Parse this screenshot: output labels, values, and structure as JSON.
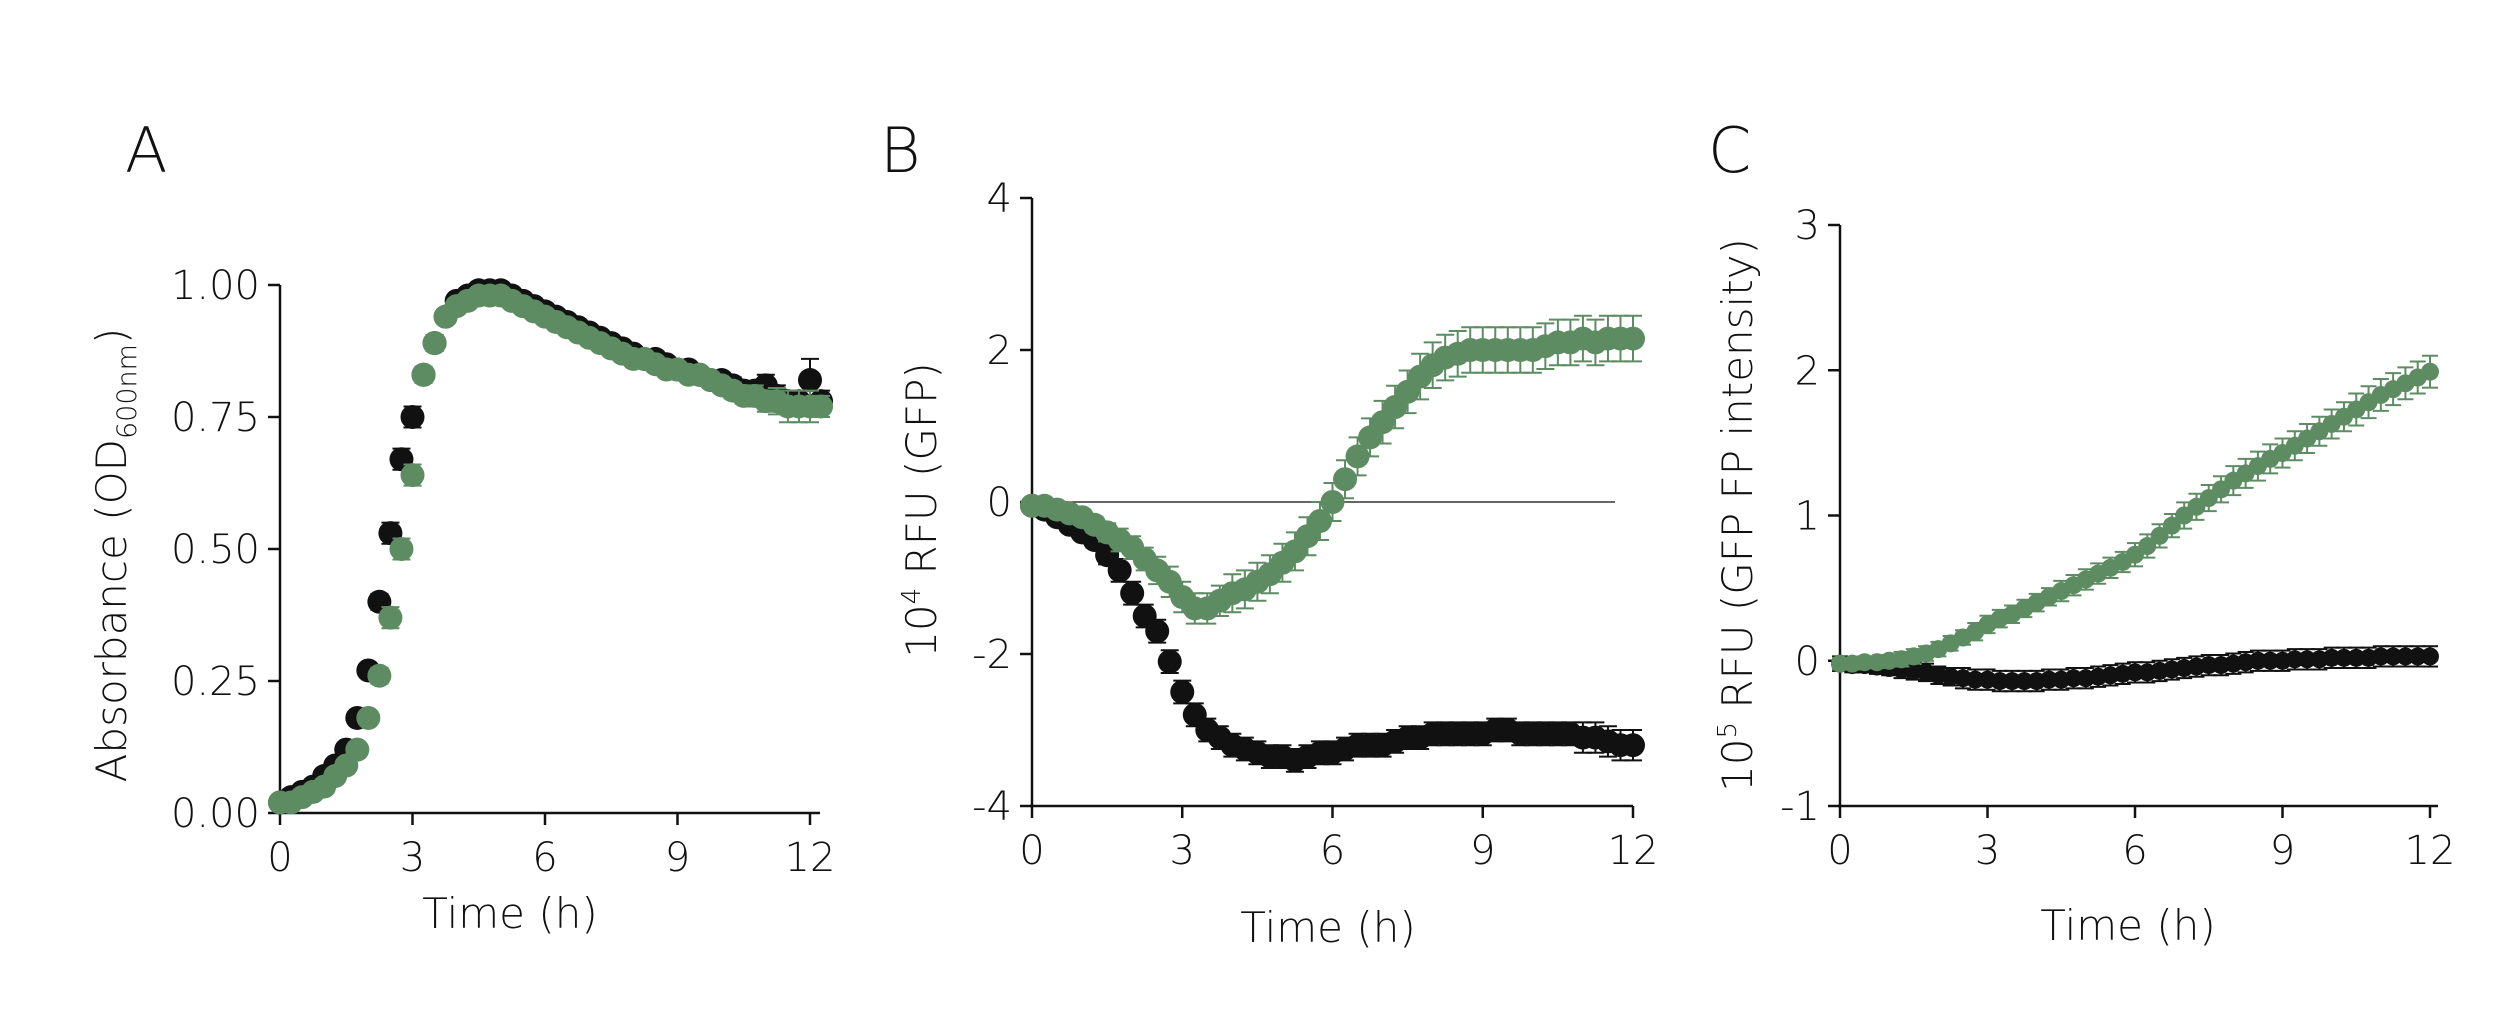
{
  "chart_data": [
    {
      "panel": "A",
      "type": "scatter",
      "xlabel": "Time (h)",
      "ylabel": "Absorbance (OD",
      "ylabel_sub": "600nm",
      "ylabel_end": ")",
      "xlim": [
        0,
        12
      ],
      "ylim": [
        0,
        1
      ],
      "xticks": [
        0,
        3,
        6,
        9,
        12
      ],
      "yticks": [
        0,
        0.25,
        0.5,
        0.75,
        1
      ],
      "ytick_labels": [
        "0.00",
        "0.25",
        "0.50",
        "0.75",
        "1.00"
      ],
      "series": [
        {
          "color": "#111111",
          "x": [
            0,
            0.25,
            0.5,
            0.75,
            1,
            1.25,
            1.5,
            1.75,
            2,
            2.25,
            2.5,
            2.75,
            3,
            3.25,
            3.5,
            3.75,
            4,
            4.25,
            4.5,
            4.75,
            5,
            5.25,
            5.5,
            5.75,
            6,
            6.25,
            6.5,
            6.75,
            7,
            7.25,
            7.5,
            7.75,
            8,
            8.25,
            8.5,
            8.75,
            9,
            9.25,
            9.5,
            9.75,
            10,
            10.25,
            10.5,
            10.75,
            11,
            11.25,
            11.5,
            11.75,
            12,
            12.25
          ],
          "y": [
            0.02,
            0.03,
            0.04,
            0.05,
            0.07,
            0.09,
            0.12,
            0.18,
            0.27,
            0.4,
            0.53,
            0.67,
            0.75,
            0.83,
            0.89,
            0.94,
            0.97,
            0.98,
            0.99,
            0.99,
            0.99,
            0.98,
            0.97,
            0.96,
            0.95,
            0.94,
            0.93,
            0.92,
            0.91,
            0.9,
            0.89,
            0.88,
            0.87,
            0.86,
            0.86,
            0.85,
            0.84,
            0.84,
            0.83,
            0.82,
            0.82,
            0.81,
            0.8,
            0.8,
            0.81,
            0.79,
            0.78,
            0.78,
            0.82,
            0.78
          ],
          "err": [
            0.005,
            0.005,
            0.005,
            0.005,
            0.006,
            0.008,
            0.01,
            0.01,
            0.012,
            0.015,
            0.02,
            0.02,
            0.02,
            0.015,
            0.015,
            0.012,
            0.012,
            0.012,
            0.012,
            0.012,
            0.012,
            0.012,
            0.012,
            0.012,
            0.012,
            0.012,
            0.012,
            0.012,
            0.012,
            0.012,
            0.012,
            0.012,
            0.012,
            0.012,
            0.012,
            0.012,
            0.012,
            0.012,
            0.012,
            0.012,
            0.012,
            0.015,
            0.015,
            0.015,
            0.02,
            0.02,
            0.02,
            0.02,
            0.04,
            0.02
          ]
        },
        {
          "color": "#5d8c62",
          "x": [
            0,
            0.25,
            0.5,
            0.75,
            1,
            1.25,
            1.5,
            1.75,
            2,
            2.25,
            2.5,
            2.75,
            3,
            3.25,
            3.5,
            3.75,
            4,
            4.25,
            4.5,
            4.75,
            5,
            5.25,
            5.5,
            5.75,
            6,
            6.25,
            6.5,
            6.75,
            7,
            7.25,
            7.5,
            7.75,
            8,
            8.25,
            8.5,
            8.75,
            9,
            9.25,
            9.5,
            9.75,
            10,
            10.25,
            10.5,
            10.75,
            11,
            11.25,
            11.5,
            11.75,
            12,
            12.25
          ],
          "y": [
            0.02,
            0.02,
            0.03,
            0.04,
            0.05,
            0.07,
            0.09,
            0.12,
            0.18,
            0.26,
            0.37,
            0.5,
            0.64,
            0.83,
            0.89,
            0.94,
            0.96,
            0.97,
            0.98,
            0.98,
            0.98,
            0.97,
            0.96,
            0.95,
            0.94,
            0.93,
            0.92,
            0.91,
            0.9,
            0.89,
            0.88,
            0.87,
            0.86,
            0.86,
            0.85,
            0.84,
            0.84,
            0.83,
            0.83,
            0.82,
            0.81,
            0.8,
            0.79,
            0.79,
            0.78,
            0.78,
            0.77,
            0.77,
            0.77,
            0.77
          ],
          "err": [
            0.005,
            0.005,
            0.005,
            0.005,
            0.006,
            0.008,
            0.01,
            0.01,
            0.012,
            0.015,
            0.02,
            0.02,
            0.02,
            0.015,
            0.015,
            0.012,
            0.012,
            0.012,
            0.012,
            0.012,
            0.012,
            0.012,
            0.012,
            0.012,
            0.012,
            0.012,
            0.012,
            0.012,
            0.012,
            0.012,
            0.012,
            0.012,
            0.012,
            0.012,
            0.012,
            0.012,
            0.012,
            0.012,
            0.012,
            0.012,
            0.012,
            0.015,
            0.015,
            0.02,
            0.02,
            0.025,
            0.03,
            0.03,
            0.03,
            0.02
          ]
        }
      ]
    },
    {
      "panel": "B",
      "type": "scatter",
      "xlabel": "Time (h)",
      "ylabel": "10",
      "ylabel_sup": "4",
      "ylabel_end": " RFU (GFP)",
      "xlim": [
        0,
        12
      ],
      "ylim": [
        -4,
        4
      ],
      "xticks": [
        0,
        3,
        6,
        9,
        12
      ],
      "yticks": [
        -4,
        -2,
        0,
        2,
        4
      ],
      "ytick_labels": [
        "-4",
        "-2",
        "0",
        "2",
        "4"
      ],
      "zero_line": true,
      "series": [
        {
          "color": "#111111",
          "x": [
            0,
            0.25,
            0.5,
            0.75,
            1,
            1.25,
            1.5,
            1.75,
            2,
            2.25,
            2.5,
            2.75,
            3,
            3.25,
            3.5,
            3.75,
            4,
            4.25,
            4.5,
            4.75,
            5,
            5.25,
            5.5,
            5.75,
            6,
            6.25,
            6.5,
            6.75,
            7,
            7.25,
            7.5,
            7.75,
            8,
            8.25,
            8.5,
            8.75,
            9,
            9.25,
            9.5,
            9.75,
            10,
            10.25,
            10.5,
            10.75,
            11,
            11.25,
            11.5,
            11.75,
            12
          ],
          "y": [
            -0.05,
            -0.1,
            -0.2,
            -0.3,
            -0.4,
            -0.5,
            -0.7,
            -0.9,
            -1.2,
            -1.5,
            -1.7,
            -2.1,
            -2.5,
            -2.8,
            -3.0,
            -3.1,
            -3.2,
            -3.25,
            -3.3,
            -3.35,
            -3.35,
            -3.4,
            -3.35,
            -3.3,
            -3.3,
            -3.25,
            -3.2,
            -3.2,
            -3.2,
            -3.15,
            -3.1,
            -3.1,
            -3.05,
            -3.05,
            -3.05,
            -3.05,
            -3.05,
            -3.0,
            -3.0,
            -3.05,
            -3.05,
            -3.05,
            -3.05,
            -3.05,
            -3.1,
            -3.1,
            -3.15,
            -3.2,
            -3.2
          ],
          "err": [
            0.05,
            0.05,
            0.05,
            0.05,
            0.08,
            0.1,
            0.12,
            0.15,
            0.15,
            0.15,
            0.15,
            0.15,
            0.15,
            0.15,
            0.15,
            0.15,
            0.15,
            0.15,
            0.15,
            0.15,
            0.15,
            0.15,
            0.15,
            0.15,
            0.15,
            0.15,
            0.15,
            0.15,
            0.15,
            0.15,
            0.15,
            0.15,
            0.15,
            0.15,
            0.15,
            0.15,
            0.15,
            0.15,
            0.15,
            0.15,
            0.15,
            0.15,
            0.15,
            0.15,
            0.2,
            0.2,
            0.2,
            0.2,
            0.2
          ]
        },
        {
          "color": "#5d8c62",
          "x": [
            0,
            0.25,
            0.5,
            0.75,
            1,
            1.25,
            1.5,
            1.75,
            2,
            2.25,
            2.5,
            2.75,
            3,
            3.25,
            3.5,
            3.75,
            4,
            4.25,
            4.5,
            4.75,
            5,
            5.25,
            5.5,
            5.75,
            6,
            6.25,
            6.5,
            6.75,
            7,
            7.25,
            7.5,
            7.75,
            8,
            8.25,
            8.5,
            8.75,
            9,
            9.25,
            9.5,
            9.75,
            10,
            10.25,
            10.5,
            10.75,
            11,
            11.25,
            11.5,
            11.75,
            12
          ],
          "y": [
            -0.05,
            -0.05,
            -0.1,
            -0.15,
            -0.2,
            -0.3,
            -0.4,
            -0.5,
            -0.6,
            -0.75,
            -0.9,
            -1.05,
            -1.25,
            -1.4,
            -1.4,
            -1.3,
            -1.2,
            -1.15,
            -1.05,
            -0.95,
            -0.8,
            -0.65,
            -0.45,
            -0.25,
            0.0,
            0.3,
            0.6,
            0.85,
            1.05,
            1.25,
            1.45,
            1.65,
            1.8,
            1.9,
            1.95,
            2.0,
            2.0,
            2.0,
            2.0,
            2.0,
            2.0,
            2.05,
            2.1,
            2.1,
            2.15,
            2.1,
            2.15,
            2.15,
            2.15
          ],
          "err": [
            0.05,
            0.05,
            0.05,
            0.08,
            0.1,
            0.1,
            0.12,
            0.15,
            0.15,
            0.15,
            0.18,
            0.2,
            0.2,
            0.2,
            0.2,
            0.2,
            0.25,
            0.25,
            0.25,
            0.25,
            0.25,
            0.25,
            0.25,
            0.25,
            0.25,
            0.25,
            0.25,
            0.25,
            0.28,
            0.28,
            0.28,
            0.3,
            0.3,
            0.3,
            0.3,
            0.3,
            0.3,
            0.3,
            0.3,
            0.3,
            0.3,
            0.3,
            0.3,
            0.3,
            0.3,
            0.3,
            0.3,
            0.3,
            0.3
          ]
        }
      ]
    },
    {
      "panel": "C",
      "type": "scatter",
      "xlabel": "Time (h)",
      "ylabel": "10",
      "ylabel_sup": "5",
      "ylabel_end": " RFU (GFP FP intensity)",
      "xlim": [
        0,
        12
      ],
      "ylim": [
        -1,
        3
      ],
      "xticks": [
        0,
        3,
        6,
        9,
        12
      ],
      "yticks": [
        -1,
        0,
        1,
        2,
        3
      ],
      "ytick_labels": [
        "-1",
        "0",
        "1",
        "2",
        "3"
      ],
      "series": [
        {
          "color": "#111111",
          "x": [
            0,
            0.25,
            0.5,
            0.75,
            1,
            1.25,
            1.5,
            1.75,
            2,
            2.25,
            2.5,
            2.75,
            3,
            3.25,
            3.5,
            3.75,
            4,
            4.25,
            4.5,
            4.75,
            5,
            5.25,
            5.5,
            5.75,
            6,
            6.25,
            6.5,
            6.75,
            7,
            7.25,
            7.5,
            7.75,
            8,
            8.25,
            8.5,
            8.75,
            9,
            9.25,
            9.5,
            9.75,
            10,
            10.25,
            10.5,
            10.75,
            11,
            11.25,
            11.5,
            11.75,
            12
          ],
          "y": [
            -0.02,
            -0.03,
            -0.03,
            -0.04,
            -0.05,
            -0.06,
            -0.07,
            -0.08,
            -0.1,
            -0.11,
            -0.12,
            -0.13,
            -0.13,
            -0.14,
            -0.14,
            -0.14,
            -0.14,
            -0.13,
            -0.13,
            -0.12,
            -0.12,
            -0.11,
            -0.1,
            -0.09,
            -0.08,
            -0.08,
            -0.07,
            -0.06,
            -0.05,
            -0.04,
            -0.03,
            -0.03,
            -0.02,
            -0.01,
            0.0,
            0.0,
            0.0,
            0.01,
            0.01,
            0.01,
            0.02,
            0.02,
            0.02,
            0.02,
            0.03,
            0.03,
            0.03,
            0.03,
            0.03
          ],
          "err": [
            0.05,
            0.05,
            0.05,
            0.05,
            0.05,
            0.06,
            0.06,
            0.06,
            0.06,
            0.06,
            0.07,
            0.07,
            0.07,
            0.07,
            0.07,
            0.07,
            0.07,
            0.07,
            0.07,
            0.07,
            0.07,
            0.07,
            0.07,
            0.07,
            0.07,
            0.07,
            0.07,
            0.07,
            0.07,
            0.07,
            0.07,
            0.07,
            0.07,
            0.07,
            0.07,
            0.07,
            0.07,
            0.07,
            0.07,
            0.07,
            0.07,
            0.07,
            0.07,
            0.07,
            0.07,
            0.07,
            0.07,
            0.07,
            0.07
          ]
        },
        {
          "color": "#5d8c62",
          "x": [
            0,
            0.25,
            0.5,
            0.75,
            1,
            1.25,
            1.5,
            1.75,
            2,
            2.25,
            2.5,
            2.75,
            3,
            3.25,
            3.5,
            3.75,
            4,
            4.25,
            4.5,
            4.75,
            5,
            5.25,
            5.5,
            5.75,
            6,
            6.25,
            6.5,
            6.75,
            7,
            7.25,
            7.5,
            7.75,
            8,
            8.25,
            8.5,
            8.75,
            9,
            9.25,
            9.5,
            9.75,
            10,
            10.25,
            10.5,
            10.75,
            11,
            11.25,
            11.5,
            11.75,
            12
          ],
          "y": [
            -0.02,
            -0.02,
            -0.01,
            -0.01,
            0.0,
            0.01,
            0.03,
            0.05,
            0.08,
            0.12,
            0.16,
            0.2,
            0.25,
            0.29,
            0.32,
            0.36,
            0.4,
            0.44,
            0.48,
            0.52,
            0.56,
            0.6,
            0.64,
            0.68,
            0.73,
            0.79,
            0.86,
            0.93,
            1.0,
            1.06,
            1.12,
            1.18,
            1.24,
            1.29,
            1.34,
            1.39,
            1.43,
            1.48,
            1.53,
            1.58,
            1.63,
            1.68,
            1.73,
            1.78,
            1.83,
            1.87,
            1.91,
            1.95,
            1.99
          ],
          "err": [
            0.04,
            0.04,
            0.04,
            0.04,
            0.04,
            0.05,
            0.05,
            0.05,
            0.05,
            0.05,
            0.05,
            0.06,
            0.06,
            0.06,
            0.06,
            0.06,
            0.06,
            0.06,
            0.07,
            0.07,
            0.07,
            0.07,
            0.07,
            0.07,
            0.08,
            0.08,
            0.08,
            0.08,
            0.09,
            0.09,
            0.09,
            0.09,
            0.1,
            0.1,
            0.1,
            0.1,
            0.1,
            0.1,
            0.1,
            0.1,
            0.1,
            0.1,
            0.11,
            0.11,
            0.11,
            0.11,
            0.11,
            0.11,
            0.11
          ]
        }
      ]
    }
  ]
}
